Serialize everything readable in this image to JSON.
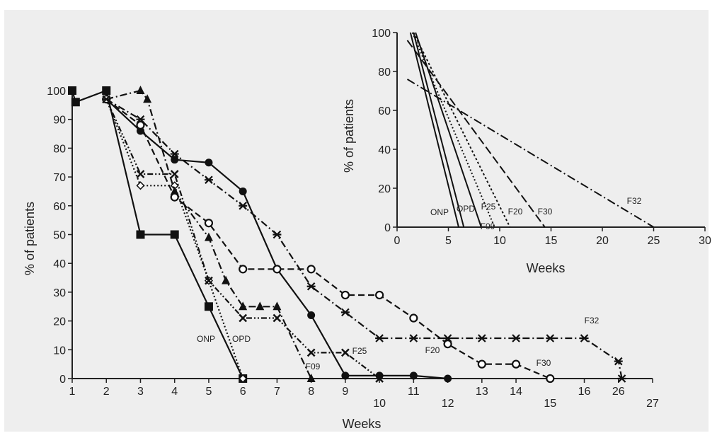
{
  "chart_data": [
    {
      "type": "line",
      "xlabel": "Weeks",
      "ylabel": "% of patients",
      "x_ticks": [
        "1",
        "2",
        "3",
        "4",
        "5",
        "6",
        "7",
        "8",
        "9",
        "10",
        "11",
        "12",
        "13",
        "14",
        "15",
        "16",
        "26",
        "27"
      ],
      "x_ticks_low": [
        "10",
        "12",
        "15",
        "27"
      ],
      "y_ticks": [
        0,
        10,
        20,
        30,
        40,
        50,
        60,
        70,
        80,
        90,
        100
      ],
      "ylim": [
        0,
        100
      ],
      "series": [
        {
          "label": "ONP",
          "marker": "square",
          "dash": "solid",
          "points": [
            [
              1,
              100
            ],
            [
              1.1,
              96
            ],
            [
              2,
              100
            ],
            [
              3,
              50
            ],
            [
              4,
              50
            ],
            [
              5,
              25
            ],
            [
              6,
              0
            ]
          ]
        },
        {
          "label": "OPD",
          "marker": "diamond",
          "dash": "dotted",
          "points": [
            [
              2,
              97
            ],
            [
              3,
              67
            ],
            [
              4,
              67
            ],
            [
              5,
              34
            ],
            [
              6,
              0
            ]
          ]
        },
        {
          "label": "F09",
          "marker": "triangle",
          "dash": "dash-dot",
          "points": [
            [
              2,
              97
            ],
            [
              3,
              100
            ],
            [
              3.2,
              97
            ],
            [
              4,
              65
            ],
            [
              5,
              49
            ],
            [
              5.5,
              34
            ],
            [
              6,
              25
            ],
            [
              6.5,
              25
            ],
            [
              7,
              25
            ],
            [
              8,
              0
            ]
          ]
        },
        {
          "label": "F25",
          "marker": "x",
          "dash": "dash-dot-dot",
          "points": [
            [
              2,
              97
            ],
            [
              3,
              71
            ],
            [
              4,
              71
            ],
            [
              5,
              34
            ],
            [
              6,
              21
            ],
            [
              7,
              21
            ],
            [
              8,
              9
            ],
            [
              9,
              9
            ],
            [
              10,
              0
            ]
          ]
        },
        {
          "label": "F20",
          "marker": "circle-filled",
          "dash": "solid",
          "points": [
            [
              2,
              97
            ],
            [
              3,
              86
            ],
            [
              4,
              76
            ],
            [
              5,
              75
            ],
            [
              6,
              65
            ],
            [
              7,
              38
            ],
            [
              8,
              22
            ],
            [
              9,
              1
            ],
            [
              10,
              1
            ],
            [
              11,
              1
            ],
            [
              12,
              0
            ]
          ]
        },
        {
          "label": "F30",
          "marker": "circle-open",
          "dash": "dashed",
          "points": [
            [
              2,
              97
            ],
            [
              3,
              88
            ],
            [
              4,
              63
            ],
            [
              5,
              54
            ],
            [
              6,
              38
            ],
            [
              7,
              38
            ],
            [
              8,
              38
            ],
            [
              9,
              29
            ],
            [
              10,
              29
            ],
            [
              11,
              21
            ],
            [
              12,
              12
            ],
            [
              13,
              5
            ],
            [
              14,
              5
            ],
            [
              15,
              0
            ]
          ]
        },
        {
          "label": "F32",
          "marker": "star",
          "dash": "dash-dot",
          "points": [
            [
              2,
              97
            ],
            [
              3,
              90
            ],
            [
              4,
              78
            ],
            [
              5,
              69
            ],
            [
              6,
              60
            ],
            [
              7,
              50
            ],
            [
              8,
              32
            ],
            [
              9,
              23
            ],
            [
              10,
              14
            ],
            [
              11,
              14
            ],
            [
              12,
              14
            ],
            [
              13,
              14
            ],
            [
              14,
              14
            ],
            [
              15,
              14
            ],
            [
              16,
              14
            ],
            [
              26,
              6
            ],
            [
              27,
              0
            ]
          ]
        }
      ],
      "series_labels": [
        "ONP",
        "OPD",
        "F09",
        "F25",
        "F20",
        "F30",
        "F32"
      ]
    },
    {
      "type": "line",
      "xlabel": "Weeks",
      "ylabel": "% of patients",
      "x_ticks": [
        0,
        5,
        10,
        15,
        20,
        25,
        30
      ],
      "y_ticks": [
        0,
        20,
        40,
        60,
        80,
        100
      ],
      "xlim": [
        0,
        30
      ],
      "ylim": [
        0,
        100
      ],
      "series": [
        {
          "label": "ONP",
          "points": [
            [
              1.3,
              100
            ],
            [
              6.0,
              0
            ]
          ]
        },
        {
          "label": "OPD",
          "points": [
            [
              1.6,
              100
            ],
            [
              6.5,
              0
            ]
          ]
        },
        {
          "label": "F09",
          "points": [
            [
              1.8,
              100
            ],
            [
              8.2,
              0
            ]
          ]
        },
        {
          "label": "F25",
          "points": [
            [
              1.5,
              100
            ],
            [
              9.5,
              0
            ]
          ]
        },
        {
          "label": "F20",
          "points": [
            [
              1.6,
              100
            ],
            [
              11.0,
              0
            ]
          ]
        },
        {
          "label": "F30",
          "points": [
            [
              1.0,
              96
            ],
            [
              14.4,
              0
            ]
          ]
        },
        {
          "label": "F32",
          "points": [
            [
              1.0,
              76
            ],
            [
              25.0,
              0
            ]
          ]
        }
      ],
      "series_labels": [
        "ONP",
        "OPD",
        "F09",
        "F25",
        "F20",
        "F30",
        "F32"
      ]
    }
  ]
}
